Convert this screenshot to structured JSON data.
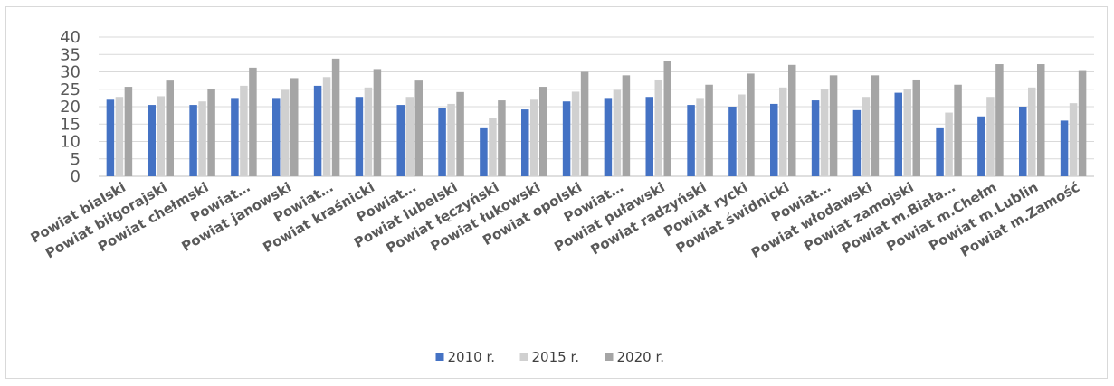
{
  "chart_data": {
    "type": "bar",
    "title": "",
    "xlabel": "",
    "ylabel": "",
    "ylim": [
      0,
      40
    ],
    "yticks": [
      0,
      5,
      10,
      15,
      20,
      25,
      30,
      35,
      40
    ],
    "grid": true,
    "legend": "bottom",
    "categories": [
      "Powiat bialski",
      "Powiat biłgorajski",
      "Powiat chełmski",
      "Powiat…",
      "Powiat janowski",
      "Powiat…",
      "Powiat kraśnicki",
      "Powiat…",
      "Powiat lubelski",
      "Powiat łęczyński",
      "Powiat łukowski",
      "Powiat opolski",
      "Powiat…",
      "Powiat puławski",
      "Powiat radzyński",
      "Powiat rycki",
      "Powiat świdnicki",
      "Powiat…",
      "Powiat włodawski",
      "Powiat zamojski",
      "Powiat m.Biała…",
      "Powiat m.Chełm",
      "Powiat m.Lublin",
      "Powiat m.Zamość"
    ],
    "series": [
      {
        "name": "2010 r.",
        "color": "#4472c4",
        "values": [
          22.0,
          20.5,
          20.5,
          22.5,
          22.5,
          26.0,
          22.8,
          20.5,
          19.5,
          13.8,
          19.2,
          21.5,
          22.5,
          22.8,
          20.5,
          20.0,
          20.8,
          21.8,
          19.0,
          24.0,
          13.8,
          17.2,
          20.0,
          16.0
        ]
      },
      {
        "name": "2015 r.",
        "color": "#d0d0d0",
        "values": [
          22.8,
          23.0,
          21.5,
          26.0,
          24.8,
          28.5,
          25.5,
          22.8,
          20.8,
          16.8,
          22.0,
          24.3,
          24.8,
          27.8,
          22.5,
          23.5,
          25.5,
          25.0,
          22.8,
          25.0,
          18.3,
          22.8,
          25.5,
          21.0
        ]
      },
      {
        "name": "2020 r.",
        "color": "#a5a5a5",
        "values": [
          25.7,
          27.5,
          25.2,
          31.2,
          28.2,
          33.8,
          30.8,
          27.5,
          24.2,
          21.8,
          25.7,
          30.0,
          29.0,
          33.2,
          26.3,
          29.5,
          32.0,
          29.0,
          29.0,
          27.8,
          26.3,
          32.2,
          32.2,
          30.5
        ]
      }
    ]
  }
}
